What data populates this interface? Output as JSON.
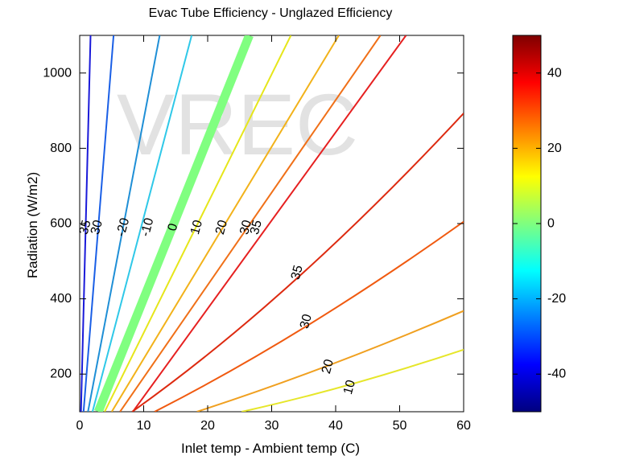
{
  "chart_data": {
    "type": "contour",
    "title": "Evac Tube Efficiency - Unglazed Efficiency",
    "xlabel": "Inlet temp - Ambient temp (C)",
    "ylabel": "Radiation (W/m2)",
    "watermark": "VREC",
    "xlim": [
      0,
      60
    ],
    "ylim": [
      100,
      1100
    ],
    "xticks": [
      0,
      10,
      20,
      30,
      40,
      50,
      60
    ],
    "yticks": [
      200,
      400,
      600,
      800,
      1000
    ],
    "colorbar": {
      "range": [
        -50,
        50
      ],
      "ticks": [
        -40,
        -20,
        0,
        20,
        40
      ],
      "colormap": [
        "#00007f",
        "#0000ff",
        "#007fff",
        "#00ffff",
        "#7fff7f",
        "#ffff00",
        "#ff7f00",
        "#ff0000",
        "#7f0000"
      ]
    },
    "contours": [
      {
        "label": "35",
        "color": "#1a1ad9",
        "points": [
          [
            0.2,
            100
          ],
          [
            1.7,
            1100
          ]
        ]
      },
      {
        "label": "30",
        "color": "#1a5fe6",
        "points": [
          [
            0.6,
            100
          ],
          [
            5.3,
            1100
          ]
        ]
      },
      {
        "label": "-20",
        "color": "#1f8fd6",
        "points": [
          [
            1.3,
            100
          ],
          [
            12.5,
            1100
          ]
        ]
      },
      {
        "label": "-10",
        "color": "#2fc8e8",
        "points": [
          [
            2.0,
            100
          ],
          [
            17.5,
            1100
          ]
        ]
      },
      {
        "label": "0",
        "color": "#80ff80",
        "points": [
          [
            2.9,
            100
          ],
          [
            26.5,
            1100
          ]
        ]
      },
      {
        "label": "10",
        "color": "#e6e61a",
        "points": [
          [
            3.9,
            100
          ],
          [
            33.0,
            1100
          ]
        ]
      },
      {
        "label": "20",
        "color": "#f2b21a",
        "points": [
          [
            5.0,
            100
          ],
          [
            40.5,
            1100
          ]
        ]
      },
      {
        "label": "30",
        "color": "#f07018",
        "points": [
          [
            6.3,
            100
          ],
          [
            47.0,
            1100
          ]
        ]
      },
      {
        "label": "35",
        "color": "#e62020",
        "points": [
          [
            8.3,
            100
          ],
          [
            51.0,
            1100
          ]
        ]
      },
      {
        "label": "35",
        "color": "#dd2a10",
        "points": [
          [
            8.2,
            100
          ],
          [
            33.0,
            400
          ],
          [
            60.0,
            893
          ]
        ]
      },
      {
        "label": "30",
        "color": "#f05a10",
        "points": [
          [
            11.7,
            100
          ],
          [
            34.8,
            300
          ],
          [
            60.0,
            605
          ]
        ]
      },
      {
        "label": "20",
        "color": "#f0a020",
        "points": [
          [
            18.3,
            100
          ],
          [
            38.3,
            210
          ],
          [
            60.0,
            368
          ]
        ]
      },
      {
        "label": "10",
        "color": "#e6e62a",
        "points": [
          [
            25.3,
            100
          ],
          [
            41.4,
            160
          ],
          [
            60.0,
            265
          ]
        ]
      }
    ],
    "contour_labels": [
      {
        "text": "35",
        "x": 0.9,
        "y": 590
      },
      {
        "text": "30",
        "x": 2.7,
        "y": 590
      },
      {
        "text": "-20",
        "x": 6.8,
        "y": 590
      },
      {
        "text": "-10",
        "x": 10.6,
        "y": 590
      },
      {
        "text": "0",
        "x": 14.6,
        "y": 590
      },
      {
        "text": "10",
        "x": 18.3,
        "y": 590
      },
      {
        "text": "20",
        "x": 22.2,
        "y": 590
      },
      {
        "text": "30",
        "x": 26.0,
        "y": 590
      },
      {
        "text": "35",
        "x": 27.6,
        "y": 590
      },
      {
        "text": "35",
        "x": 34.0,
        "y": 470
      },
      {
        "text": "30",
        "x": 35.4,
        "y": 340
      },
      {
        "text": "20",
        "x": 38.8,
        "y": 220
      },
      {
        "text": "10",
        "x": 42.2,
        "y": 165
      }
    ]
  }
}
